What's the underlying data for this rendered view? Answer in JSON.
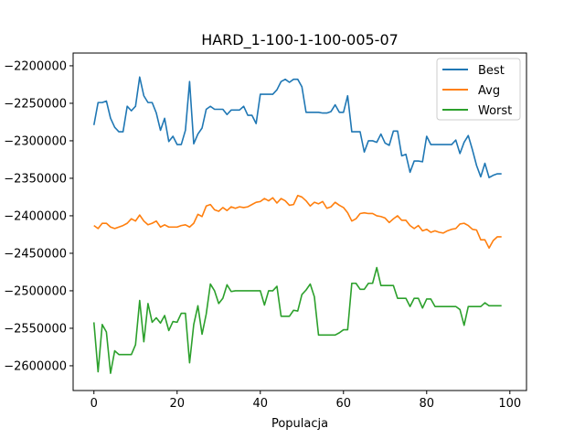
{
  "chart_data": {
    "type": "line",
    "title": "HARD_1-100-1-100-005-07",
    "xlabel": "Populacja",
    "ylabel": "",
    "xlim": [
      -5,
      104
    ],
    "ylim": [
      -2633000,
      -2183000
    ],
    "xticks": [
      0,
      20,
      40,
      60,
      80,
      100
    ],
    "yticks": [
      -2600000,
      -2550000,
      -2500000,
      -2450000,
      -2400000,
      -2350000,
      -2300000,
      -2250000,
      -2200000
    ],
    "grid": false,
    "legend": "top-right",
    "series": [
      {
        "name": "Best",
        "color": "#1f77b4",
        "values": [
          -2279000,
          -2249000,
          -2249000,
          -2247000,
          -2270000,
          -2282000,
          -2288000,
          -2288000,
          -2254000,
          -2260000,
          -2254000,
          -2215000,
          -2240000,
          -2249000,
          -2249000,
          -2263000,
          -2286000,
          -2270000,
          -2301000,
          -2294000,
          -2305000,
          -2305000,
          -2286000,
          -2221000,
          -2304000,
          -2291000,
          -2283000,
          -2258000,
          -2254000,
          -2258000,
          -2258000,
          -2258000,
          -2265000,
          -2259000,
          -2259000,
          -2259000,
          -2254000,
          -2266000,
          -2266000,
          -2277000,
          -2238000,
          -2238000,
          -2238000,
          -2238000,
          -2232000,
          -2221000,
          -2218000,
          -2222000,
          -2218000,
          -2218000,
          -2228000,
          -2262000,
          -2262000,
          -2262000,
          -2262000,
          -2263000,
          -2263000,
          -2261000,
          -2252000,
          -2262000,
          -2262000,
          -2240000,
          -2288000,
          -2288000,
          -2288000,
          -2315000,
          -2300000,
          -2300000,
          -2302000,
          -2291000,
          -2303000,
          -2306000,
          -2287000,
          -2287000,
          -2320000,
          -2318000,
          -2342000,
          -2327000,
          -2327000,
          -2328000,
          -2294000,
          -2305000,
          -2305000,
          -2305000,
          -2305000,
          -2305000,
          -2305000,
          -2299000,
          -2317000,
          -2302000,
          -2293000,
          -2312000,
          -2333000,
          -2348000,
          -2330000,
          -2349000,
          -2346000,
          -2344000,
          -2344000
        ]
      },
      {
        "name": "Avg",
        "color": "#ff7f0e",
        "values": [
          -2413000,
          -2417000,
          -2410000,
          -2410000,
          -2415000,
          -2417000,
          -2415000,
          -2413000,
          -2410000,
          -2404000,
          -2407000,
          -2399000,
          -2407000,
          -2412000,
          -2410000,
          -2407000,
          -2415000,
          -2412000,
          -2415000,
          -2415000,
          -2415000,
          -2413000,
          -2412000,
          -2415000,
          -2410000,
          -2398000,
          -2401000,
          -2387000,
          -2385000,
          -2392000,
          -2394000,
          -2389000,
          -2393000,
          -2388000,
          -2390000,
          -2388000,
          -2389000,
          -2388000,
          -2385000,
          -2382000,
          -2381000,
          -2377000,
          -2380000,
          -2376000,
          -2383000,
          -2377000,
          -2380000,
          -2386000,
          -2385000,
          -2373000,
          -2375000,
          -2380000,
          -2387000,
          -2382000,
          -2384000,
          -2381000,
          -2390000,
          -2388000,
          -2382000,
          -2386000,
          -2389000,
          -2396000,
          -2407000,
          -2404000,
          -2397000,
          -2396000,
          -2397000,
          -2397000,
          -2400000,
          -2401000,
          -2403000,
          -2409000,
          -2404000,
          -2400000,
          -2406000,
          -2406000,
          -2413000,
          -2417000,
          -2413000,
          -2420000,
          -2418000,
          -2422000,
          -2420000,
          -2422000,
          -2423000,
          -2420000,
          -2418000,
          -2417000,
          -2411000,
          -2410000,
          -2413000,
          -2418000,
          -2419000,
          -2432000,
          -2432000,
          -2443000,
          -2433000,
          -2428000,
          -2428000
        ]
      },
      {
        "name": "Worst",
        "color": "#2ca02c",
        "values": [
          -2542000,
          -2608000,
          -2545000,
          -2555000,
          -2610000,
          -2580000,
          -2585000,
          -2585000,
          -2585000,
          -2585000,
          -2572000,
          -2513000,
          -2568000,
          -2517000,
          -2542000,
          -2536000,
          -2543000,
          -2533000,
          -2553000,
          -2541000,
          -2542000,
          -2530000,
          -2530000,
          -2596000,
          -2545000,
          -2520000,
          -2558000,
          -2531000,
          -2491000,
          -2500000,
          -2517000,
          -2510000,
          -2492000,
          -2501000,
          -2500000,
          -2500000,
          -2500000,
          -2500000,
          -2500000,
          -2500000,
          -2500000,
          -2519000,
          -2500000,
          -2500000,
          -2494000,
          -2534000,
          -2534000,
          -2534000,
          -2526000,
          -2527000,
          -2505000,
          -2499000,
          -2491000,
          -2508000,
          -2559000,
          -2559000,
          -2559000,
          -2559000,
          -2559000,
          -2556000,
          -2552000,
          -2552000,
          -2490000,
          -2490000,
          -2498000,
          -2498000,
          -2490000,
          -2490000,
          -2469000,
          -2493000,
          -2493000,
          -2493000,
          -2493000,
          -2510000,
          -2510000,
          -2510000,
          -2521000,
          -2510000,
          -2510000,
          -2523000,
          -2511000,
          -2511000,
          -2521000,
          -2521000,
          -2521000,
          -2521000,
          -2521000,
          -2521000,
          -2525000,
          -2546000,
          -2521000,
          -2521000,
          -2521000,
          -2521000,
          -2516000,
          -2520000,
          -2520000,
          -2520000,
          -2520000
        ]
      }
    ]
  }
}
